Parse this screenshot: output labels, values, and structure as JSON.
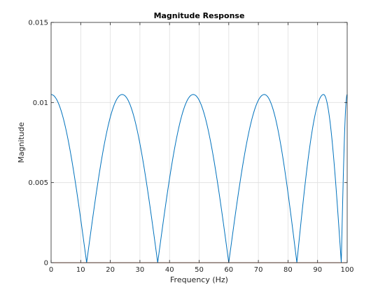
{
  "chart_data": {
    "type": "line",
    "title": "Magnitude Response",
    "xlabel": "Frequency (Hz)",
    "ylabel": "Magnitude",
    "xlim": [
      0,
      100
    ],
    "ylim": [
      0,
      0.015
    ],
    "xticks": [
      0,
      10,
      20,
      30,
      40,
      50,
      60,
      70,
      80,
      90,
      100
    ],
    "xtick_labels": [
      "0",
      "10",
      "20",
      "30",
      "40",
      "50",
      "60",
      "70",
      "80",
      "90",
      "100"
    ],
    "yticks": [
      0,
      0.005,
      0.01,
      0.015
    ],
    "ytick_labels": [
      "0",
      "0.005",
      "0.01",
      "0.015"
    ],
    "grid": true,
    "series": [
      {
        "color": "#0072bd",
        "x": [
          0,
          12,
          24,
          36,
          48,
          60,
          72,
          83,
          92,
          98,
          100
        ],
        "y": [
          0.0105,
          0.0,
          0.0105,
          0.0,
          0.0105,
          0.0,
          0.0105,
          0.0,
          0.0105,
          0.0,
          0.0105
        ]
      },
      {
        "color": "#d95319",
        "x": [
          0,
          100
        ],
        "y": [
          0.0,
          0.0
        ]
      }
    ]
  }
}
